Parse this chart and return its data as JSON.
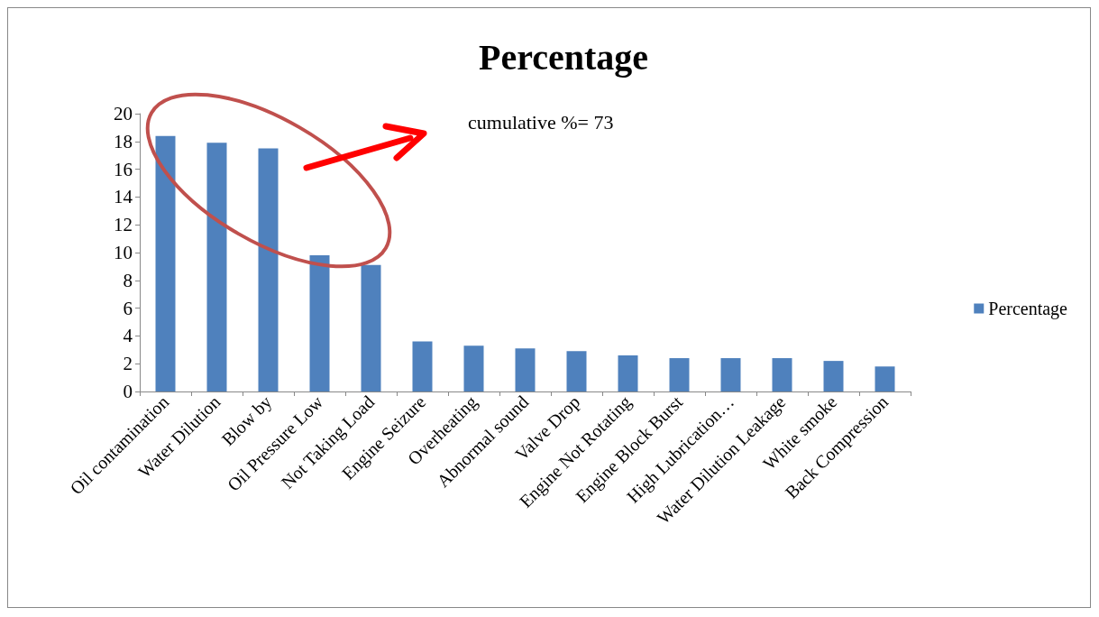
{
  "chart_data": {
    "type": "bar",
    "title": "Percentage",
    "categories": [
      "Oil contamination",
      "Water Dilution",
      "Blow by",
      "Oil Pressure Low",
      "Not Taking Load",
      "Engine Seizure",
      "Overheating",
      "Abnormal sound",
      "Valve Drop",
      "Engine Not Rotating",
      "Engine Block Burst",
      "High Lubrication…",
      "Water Dilution Leakage",
      "White smoke",
      "Back Compression"
    ],
    "series": [
      {
        "name": "Percentage",
        "color": "#4f81bd",
        "values": [
          18.4,
          17.9,
          17.5,
          9.8,
          9.1,
          3.6,
          3.3,
          3.1,
          2.9,
          2.6,
          2.4,
          2.4,
          2.4,
          2.2,
          1.8
        ]
      }
    ],
    "ylim": [
      0,
      20
    ],
    "yticks": [
      0,
      2,
      4,
      6,
      8,
      10,
      12,
      14,
      16,
      18,
      20
    ],
    "grid": false,
    "legend": "right",
    "annotations": [
      "cumulative %= 73"
    ]
  }
}
